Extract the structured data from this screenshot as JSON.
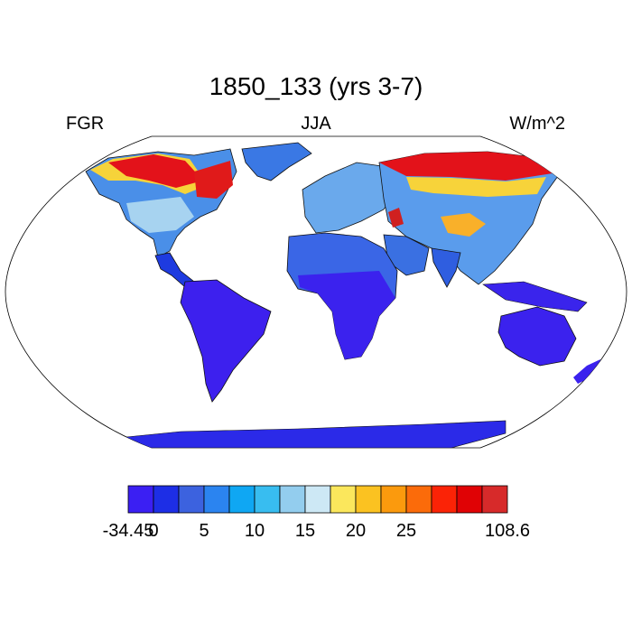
{
  "title": "1850_133 (yrs 3-7)",
  "left_label": "FGR",
  "center_label": "JJA",
  "right_label": "W/m^2",
  "colorbar": {
    "colors": [
      "#3b1ff3",
      "#1d2ee6",
      "#3c62df",
      "#2b84f0",
      "#0fa7f3",
      "#38bdf0",
      "#93cdee",
      "#cde8f5",
      "#fbe75c",
      "#fbc221",
      "#fb9a0d",
      "#fb6b0a",
      "#fb2306",
      "#e00205",
      "#d72a2a"
    ],
    "labels": [
      "-34.45",
      "0",
      "5",
      "10",
      "15",
      "20",
      "25",
      "108.6"
    ]
  },
  "map_data": {
    "projection": "robinson",
    "variable": "FGR",
    "season": "JJA",
    "units": "W/m^2"
  }
}
